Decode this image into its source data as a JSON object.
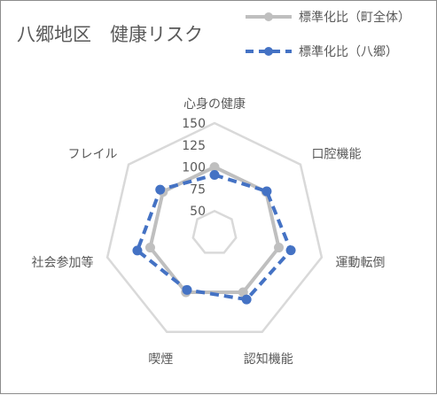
{
  "chart_data": {
    "type": "radar",
    "title": "八郷地区　健康リスク",
    "categories": [
      "心身の健康",
      "口腔機能",
      "運動転倒",
      "認知機能",
      "喫煙",
      "社会参加等",
      "フレイル"
    ],
    "rlim": [
      25,
      150
    ],
    "ticks": [
      {
        "value": 50,
        "label": "50"
      },
      {
        "value": 75,
        "label": "75"
      },
      {
        "value": 100,
        "label": "100"
      },
      {
        "value": 125,
        "label": "125"
      },
      {
        "value": 150,
        "label": "150"
      }
    ],
    "gridlines": [
      50,
      100,
      150
    ],
    "legend_position": "top-right",
    "series": [
      {
        "name": "標準化比（町全体）",
        "color": "#bfbfbf",
        "line_style": "solid",
        "values": [
          100,
          100,
          100,
          100,
          100,
          100,
          100
        ]
      },
      {
        "name": "標準化比（八郷）",
        "color": "#4472c4",
        "line_style": "dashed",
        "values": [
          91,
          101,
          114,
          109,
          97,
          115,
          104
        ]
      }
    ]
  }
}
